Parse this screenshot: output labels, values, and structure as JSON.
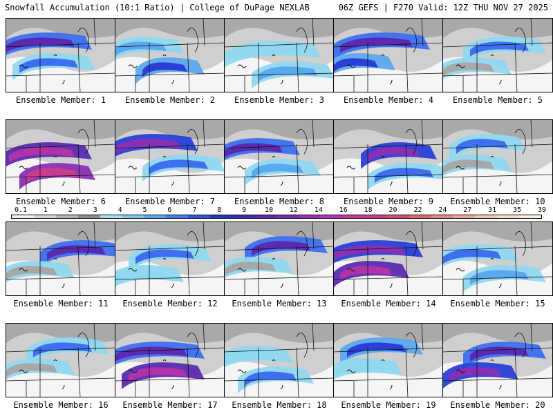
{
  "header": {
    "title_left": "Snowfall Accumulation (10:1 Ratio) | College of DuPage NEXLAB",
    "title_right": "06Z GEFS | F270 Valid: 12Z THU NOV 27 2025"
  },
  "panels": [
    {
      "label": "Ensemble Member: 1"
    },
    {
      "label": "Ensemble Member: 2"
    },
    {
      "label": "Ensemble Member: 3"
    },
    {
      "label": "Ensemble Member: 4"
    },
    {
      "label": "Ensemble Member: 5"
    },
    {
      "label": "Ensemble Member: 6"
    },
    {
      "label": "Ensemble Member: 7"
    },
    {
      "label": "Ensemble Member: 8"
    },
    {
      "label": "Ensemble Member: 9"
    },
    {
      "label": "Ensemble Member: 10"
    },
    {
      "label": "Ensemble Member: 11"
    },
    {
      "label": "Ensemble Member: 12"
    },
    {
      "label": "Ensemble Member: 13"
    },
    {
      "label": "Ensemble Member: 14"
    },
    {
      "label": "Ensemble Member: 15"
    },
    {
      "label": "Ensemble Member: 16"
    },
    {
      "label": "Ensemble Member: 17"
    },
    {
      "label": "Ensemble Member: 18"
    },
    {
      "label": "Ensemble Member: 19"
    },
    {
      "label": "Ensemble Member: 20"
    }
  ],
  "colorbar": {
    "ticks": [
      "0.1",
      "1",
      "2",
      "3",
      "4",
      "5",
      "6",
      "7",
      "8",
      "9",
      "10",
      "12",
      "14",
      "16",
      "18",
      "20",
      "22",
      "24",
      "27",
      "31",
      "35",
      "39"
    ],
    "colors": [
      "#f2f2f2",
      "#d6d6d6",
      "#b5b5b5",
      "#8f8f8f",
      "#aadff2",
      "#7fc8f0",
      "#58a8ee",
      "#3c80f0",
      "#2f55e8",
      "#2236cf",
      "#3a2cb8",
      "#5a2bb0",
      "#7a2db3",
      "#9a30b8",
      "#b833b5",
      "#c9379f",
      "#d13d8a",
      "#d84b78",
      "#dd6a72",
      "#e58c80",
      "#eda996",
      "#f3c7b3",
      "#f7dccb",
      "#fbeee5"
    ]
  }
}
